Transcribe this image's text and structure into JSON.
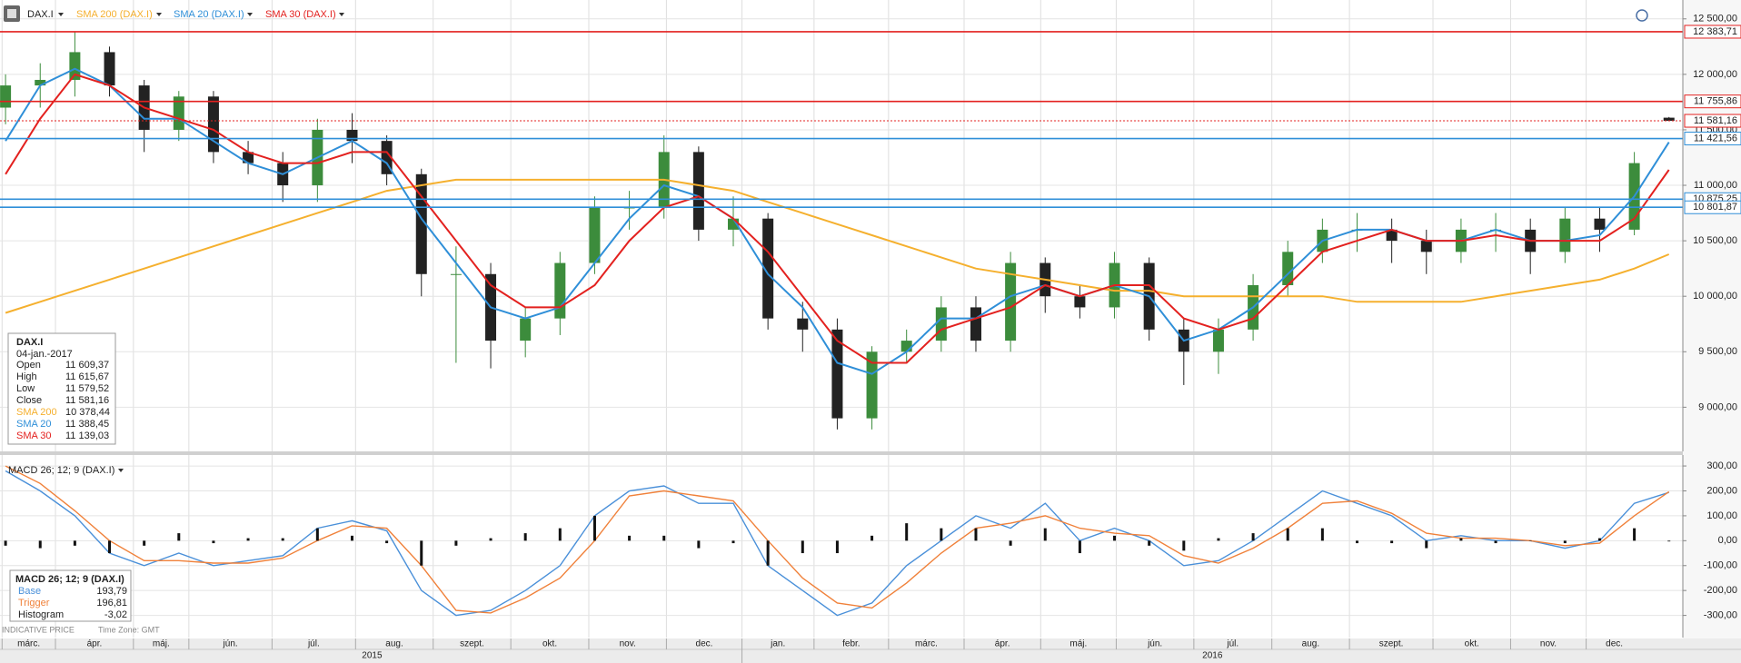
{
  "chart_data": [
    {
      "type": "candlestick",
      "name": "DAX.I",
      "up_color": "#3c8c3c",
      "down_color": "#222222",
      "open": [
        11700,
        11900,
        11950,
        12200,
        11900,
        11500,
        11800,
        11300,
        11200,
        11000,
        11500,
        11400,
        11100,
        10200,
        10200,
        9600,
        9800,
        10300,
        10800,
        10800,
        11300,
        10600,
        10700,
        9800,
        9700,
        8900,
        9500,
        9600,
        9900,
        9600,
        10300,
        10000,
        9900,
        10300,
        9700,
        9500,
        9700,
        10100,
        10400,
        10600,
        10600,
        10500,
        10400,
        10600,
        10600,
        10400,
        10700,
        10600,
        11609.37
      ],
      "high": [
        12000,
        12100,
        12380,
        12250,
        11950,
        11850,
        11850,
        11400,
        11300,
        11600,
        11650,
        11450,
        11150,
        10450,
        10300,
        9900,
        10400,
        10900,
        10950,
        11450,
        11350,
        10900,
        10750,
        9950,
        9800,
        9550,
        9700,
        10000,
        10000,
        10400,
        10350,
        10100,
        10400,
        10350,
        9800,
        9800,
        10200,
        10500,
        10700,
        10750,
        10700,
        10600,
        10700,
        10750,
        10700,
        10800,
        10800,
        11300,
        11615.67
      ],
      "low": [
        11550,
        11700,
        11800,
        11800,
        11300,
        11400,
        11200,
        11100,
        10850,
        10850,
        11200,
        11000,
        10000,
        9400,
        9350,
        9450,
        9650,
        10200,
        10600,
        10700,
        10500,
        10450,
        9700,
        9500,
        8800,
        8800,
        9400,
        9500,
        9500,
        9500,
        9850,
        9800,
        9800,
        9600,
        9200,
        9300,
        9600,
        10000,
        10300,
        10400,
        10300,
        10200,
        10300,
        10400,
        10200,
        10300,
        10400,
        10550,
        11579.52
      ],
      "close": [
        11900,
        11950,
        12200,
        11900,
        11500,
        11800,
        11300,
        11200,
        11000,
        11500,
        11400,
        11100,
        10200,
        10200,
        9600,
        9800,
        10300,
        10800,
        10800,
        11300,
        10600,
        10700,
        9800,
        9700,
        8900,
        9500,
        9600,
        9900,
        9600,
        10300,
        10000,
        9900,
        10300,
        9700,
        9500,
        9700,
        10100,
        10400,
        10600,
        10600,
        10500,
        10400,
        10600,
        10600,
        10400,
        10700,
        10600,
        11200,
        11581.16
      ],
      "series": [
        {
          "name": "SMA 200 (DAX.I)",
          "color": "#f5b02e",
          "values": [
            9850,
            9950,
            10050,
            10150,
            10250,
            10350,
            10450,
            10550,
            10650,
            10750,
            10850,
            10950,
            11000,
            11050,
            11050,
            11050,
            11050,
            11050,
            11050,
            11050,
            11000,
            10950,
            10850,
            10750,
            10650,
            10550,
            10450,
            10350,
            10250,
            10200,
            10150,
            10100,
            10050,
            10050,
            10000,
            10000,
            10000,
            10000,
            10000,
            9950,
            9950,
            9950,
            9950,
            10000,
            10050,
            10100,
            10150,
            10250,
            10378.44
          ]
        },
        {
          "name": "SMA 20 (DAX.I)",
          "color": "#2f8fd8",
          "values": [
            11400,
            11900,
            12050,
            11900,
            11600,
            11600,
            11400,
            11200,
            11100,
            11250,
            11400,
            11200,
            10700,
            10300,
            9900,
            9800,
            9900,
            10300,
            10700,
            11000,
            10900,
            10700,
            10200,
            9900,
            9400,
            9300,
            9500,
            9800,
            9800,
            10000,
            10100,
            10000,
            10100,
            10000,
            9600,
            9700,
            9900,
            10200,
            10500,
            10600,
            10600,
            10500,
            10500,
            10600,
            10500,
            10500,
            10550,
            10900,
            11388.45
          ]
        },
        {
          "name": "SMA 30 (DAX.I)",
          "color": "#e3211f",
          "values": [
            11100,
            11600,
            12000,
            11900,
            11700,
            11600,
            11500,
            11300,
            11200,
            11200,
            11300,
            11300,
            10900,
            10500,
            10100,
            9900,
            9900,
            10100,
            10500,
            10800,
            10900,
            10700,
            10400,
            10000,
            9600,
            9400,
            9400,
            9700,
            9800,
            9900,
            10100,
            10000,
            10100,
            10100,
            9800,
            9700,
            9800,
            10100,
            10400,
            10500,
            10600,
            10500,
            10500,
            10550,
            10500,
            10500,
            10500,
            10700,
            11139.03
          ]
        }
      ],
      "levels": [
        {
          "value": 12383.71,
          "label": "12 383,71",
          "color": "#e3211f",
          "style": "solid"
        },
        {
          "value": 11755.86,
          "label": "11 755,86",
          "color": "#e3211f",
          "style": "solid"
        },
        {
          "value": 11581.16,
          "label": "11 581,16",
          "color": "#e3211f",
          "style": "dotted"
        },
        {
          "value": 11421.56,
          "label": "11 421,56",
          "color": "#2f8fd8",
          "style": "solid"
        },
        {
          "value": 10875.25,
          "label": "10 875,25",
          "color": "#2f8fd8",
          "style": "solid"
        },
        {
          "value": 10801.87,
          "label": "10 801,87",
          "color": "#2f8fd8",
          "style": "solid"
        }
      ],
      "xlim": [
        -0.16,
        48.4
      ],
      "xticks": [
        {
          "value": -0.1,
          "label": "márc."
        },
        {
          "value": 1.44,
          "label": "ápr."
        },
        {
          "value": 3.69,
          "label": "máj."
        },
        {
          "value": 5.29,
          "label": "jún."
        },
        {
          "value": 7.69,
          "label": "júl."
        },
        {
          "value": 10.1,
          "label": "aug."
        },
        {
          "value": 12.34,
          "label": "szept."
        },
        {
          "value": 14.58,
          "label": "okt."
        },
        {
          "value": 16.83,
          "label": "nov."
        },
        {
          "value": 19.07,
          "label": "dec."
        },
        {
          "value": 21.25,
          "label": "jan."
        },
        {
          "value": 23.33,
          "label": "febr."
        },
        {
          "value": 25.48,
          "label": "márc."
        },
        {
          "value": 27.66,
          "label": "ápr."
        },
        {
          "value": 29.87,
          "label": "máj."
        },
        {
          "value": 32.05,
          "label": "jún."
        },
        {
          "value": 34.29,
          "label": "júl."
        },
        {
          "value": 36.54,
          "label": "aug."
        },
        {
          "value": 38.78,
          "label": "szept."
        },
        {
          "value": 41.19,
          "label": "okt."
        },
        {
          "value": 43.43,
          "label": "nov."
        },
        {
          "value": 45.61,
          "label": "dec."
        }
      ],
      "years": [
        {
          "value": -0.1,
          "label": "2015"
        },
        {
          "value": 21.25,
          "label": "2016"
        }
      ],
      "ylim": [
        8602,
        12670
      ],
      "yticks": [
        {
          "value": 12500,
          "label": "12 500,00"
        },
        {
          "value": 12000,
          "label": "12 000,00"
        },
        {
          "value": 11500,
          "label": "11 500,00"
        },
        {
          "value": 11000,
          "label": "11 000,00"
        },
        {
          "value": 10500,
          "label": "10 500,00"
        },
        {
          "value": 10000,
          "label": "10 000,00"
        },
        {
          "value": 9500,
          "label": "9 500,00"
        },
        {
          "value": 9000,
          "label": "9 000,00"
        }
      ]
    },
    {
      "type": "macd",
      "title": "MACD 26; 12; 9 (DAX.I)",
      "series": [
        {
          "name": "Base",
          "color": "#4a90d9",
          "values": [
            280,
            200,
            100,
            -50,
            -100,
            -50,
            -100,
            -80,
            -60,
            50,
            80,
            40,
            -200,
            -300,
            -280,
            -200,
            -100,
            100,
            200,
            220,
            150,
            150,
            -100,
            -200,
            -300,
            -250,
            -100,
            0,
            100,
            50,
            150,
            0,
            50,
            0,
            -100,
            -80,
            0,
            100,
            200,
            150,
            100,
            0,
            20,
            0,
            0,
            -30,
            0,
            150,
            193.79
          ],
          "last_label": "193,79"
        },
        {
          "name": "Trigger",
          "color": "#f0813a",
          "values": [
            300,
            230,
            120,
            0,
            -80,
            -80,
            -90,
            -90,
            -70,
            0,
            60,
            50,
            -100,
            -280,
            -290,
            -230,
            -150,
            0,
            180,
            200,
            180,
            160,
            0,
            -150,
            -250,
            -270,
            -170,
            -50,
            50,
            70,
            100,
            50,
            30,
            20,
            -60,
            -90,
            -30,
            50,
            150,
            160,
            110,
            30,
            10,
            10,
            0,
            -20,
            -10,
            100,
            196.81
          ],
          "last_label": "196,81"
        },
        {
          "name": "Histogram",
          "color": "#111111",
          "values": [
            -20,
            -30,
            -20,
            -50,
            -20,
            30,
            -10,
            10,
            10,
            50,
            20,
            -10,
            -100,
            -20,
            10,
            30,
            50,
            100,
            20,
            20,
            -30,
            -10,
            -100,
            -50,
            -50,
            20,
            70,
            50,
            50,
            -20,
            50,
            -50,
            20,
            -20,
            -40,
            10,
            30,
            50,
            50,
            -10,
            -10,
            -30,
            10,
            -10,
            0,
            -10,
            10,
            50,
            -3.02
          ],
          "last_label": "-3,02"
        }
      ],
      "ylim": [
        -389,
        344
      ],
      "yticks": [
        {
          "value": 300,
          "label": "300,00"
        },
        {
          "value": 200,
          "label": "200,00"
        },
        {
          "value": 100,
          "label": "100,00"
        },
        {
          "value": 0,
          "label": "0,00"
        },
        {
          "value": -100,
          "label": "-100,00"
        },
        {
          "value": -200,
          "label": "-200,00"
        },
        {
          "value": -300,
          "label": "-300,00"
        }
      ]
    }
  ],
  "info_box": {
    "title": "DAX.I",
    "date": "04-jan.-2017",
    "rows": [
      {
        "label": "Open",
        "value": "11 609,37"
      },
      {
        "label": "High",
        "value": "11 615,67"
      },
      {
        "label": "Low",
        "value": "11 579,52"
      },
      {
        "label": "Close",
        "value": "11 581,16"
      },
      {
        "label": "SMA 200",
        "value": "10 378,44",
        "color": "#f5b02e"
      },
      {
        "label": "SMA 20",
        "value": "11 388,45",
        "color": "#2f8fd8"
      },
      {
        "label": "SMA 30",
        "value": "11 139,03",
        "color": "#e3211f"
      }
    ]
  },
  "footer": {
    "source": "INDICATIVE PRICE",
    "timezone": "Time Zone: GMT"
  }
}
